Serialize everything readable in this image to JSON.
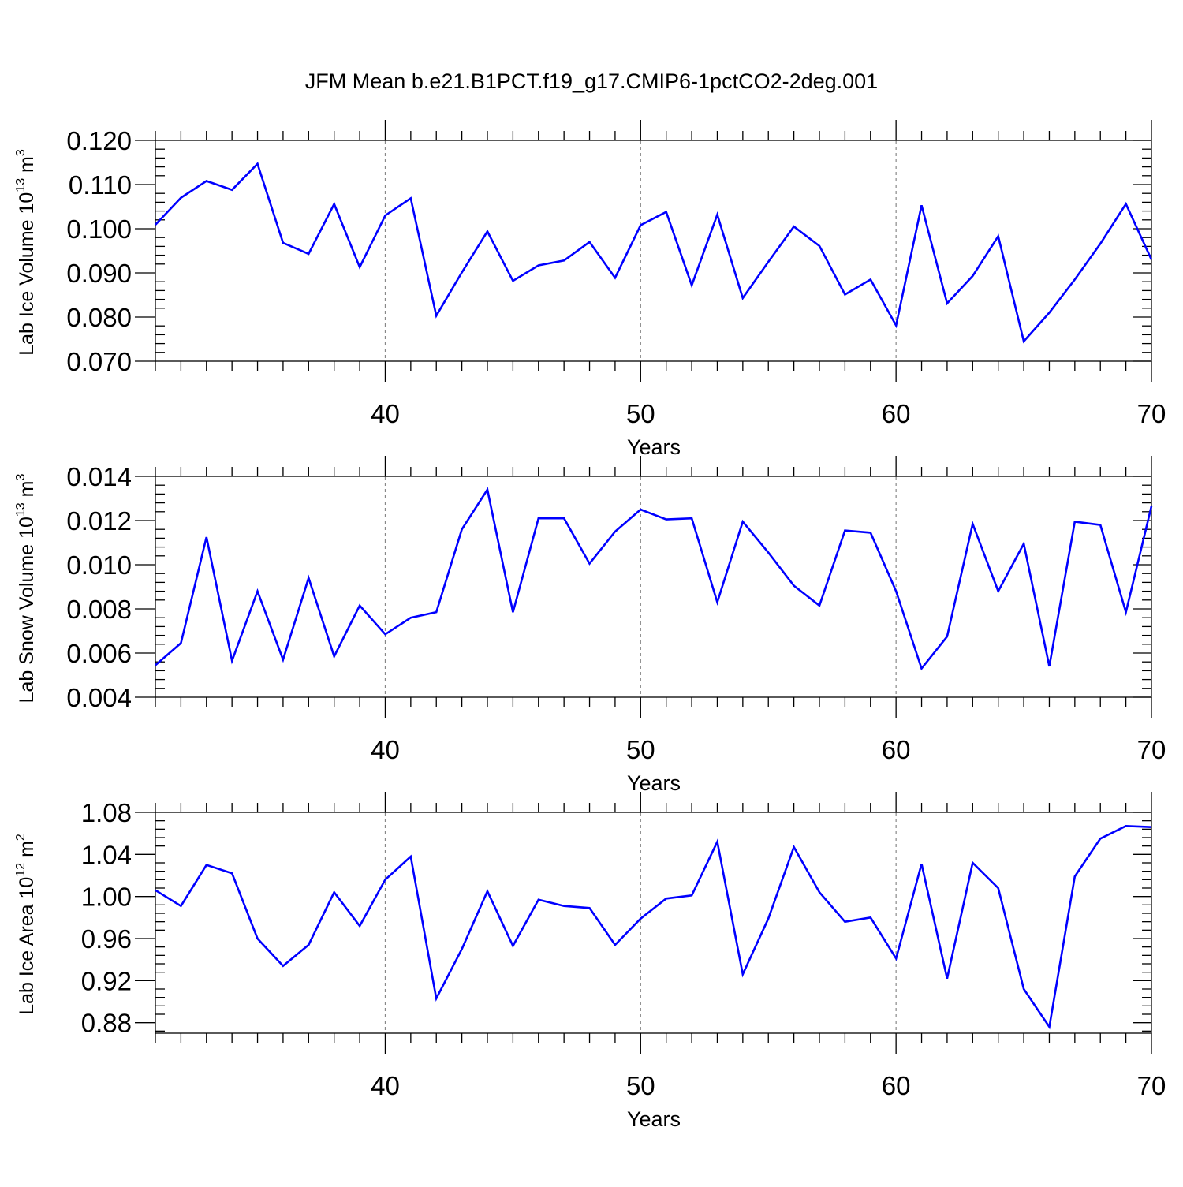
{
  "title": "JFM Mean b.e21.B1PCT.f19_g17.CMIP6-1pctCO2-2deg.001",
  "colors": {
    "line": "#0000ff",
    "axis": "#000000",
    "grid": "#888888"
  },
  "chart_data": [
    {
      "type": "line",
      "xlabel": "Years",
      "ylabel": "Lab Ice Volume 10",
      "ylabel_sup": "13",
      "ylabel_unit": " m",
      "ylabel_unit_sup": "3",
      "xlim": [
        31,
        70
      ],
      "ylim": [
        0.07,
        0.12
      ],
      "xticks": [
        40,
        50,
        60,
        70
      ],
      "yticks": [
        0.07,
        0.08,
        0.09,
        0.1,
        0.11,
        0.12
      ],
      "ytick_labels": [
        "0.070",
        "0.080",
        "0.090",
        "0.100",
        "0.110",
        "0.120"
      ],
      "x_gridlines": [
        40,
        50,
        60
      ],
      "x": [
        31,
        32,
        33,
        34,
        35,
        36,
        37,
        38,
        39,
        40,
        41,
        42,
        43,
        44,
        45,
        46,
        47,
        48,
        49,
        50,
        51,
        52,
        53,
        54,
        55,
        56,
        57,
        58,
        59,
        60,
        61,
        62,
        63,
        64,
        65,
        66,
        67,
        68,
        69,
        70
      ],
      "values": [
        0.1009,
        0.107,
        0.1108,
        0.1088,
        0.1147,
        0.0968,
        0.0943,
        0.1056,
        0.0913,
        0.103,
        0.1069,
        0.0803,
        0.0901,
        0.0994,
        0.0882,
        0.0917,
        0.0928,
        0.097,
        0.0889,
        0.1008,
        0.1038,
        0.0872,
        0.1032,
        0.0843,
        0.0925,
        0.1005,
        0.0961,
        0.0851,
        0.0885,
        0.0781,
        0.1053,
        0.0831,
        0.0893,
        0.0983,
        0.0745,
        0.081,
        0.0885,
        0.0966,
        0.1056,
        0.093
      ]
    },
    {
      "type": "line",
      "xlabel": "Years",
      "ylabel": "Lab Snow Volume 10",
      "ylabel_sup": "13",
      "ylabel_unit": " m",
      "ylabel_unit_sup": "3",
      "xlim": [
        31,
        70
      ],
      "ylim": [
        0.004,
        0.014
      ],
      "xticks": [
        40,
        50,
        60,
        70
      ],
      "yticks": [
        0.004,
        0.006,
        0.008,
        0.01,
        0.012,
        0.014
      ],
      "ytick_labels": [
        "0.004",
        "0.006",
        "0.008",
        "0.010",
        "0.012",
        "0.014"
      ],
      "x_gridlines": [
        40,
        50,
        60
      ],
      "x": [
        31,
        32,
        33,
        34,
        35,
        36,
        37,
        38,
        39,
        40,
        41,
        42,
        43,
        44,
        45,
        46,
        47,
        48,
        49,
        50,
        51,
        52,
        53,
        54,
        55,
        56,
        57,
        58,
        59,
        60,
        61,
        62,
        63,
        64,
        65,
        66,
        67,
        68,
        69,
        70
      ],
      "values": [
        0.00545,
        0.00645,
        0.01125,
        0.00565,
        0.0088,
        0.0057,
        0.0094,
        0.00585,
        0.00815,
        0.00685,
        0.0076,
        0.00785,
        0.0116,
        0.0134,
        0.00785,
        0.0121,
        0.0121,
        0.01005,
        0.0115,
        0.0125,
        0.01205,
        0.0121,
        0.0083,
        0.01195,
        0.01055,
        0.00905,
        0.00815,
        0.01155,
        0.01145,
        0.0088,
        0.0053,
        0.00675,
        0.01185,
        0.0088,
        0.01095,
        0.0054,
        0.01195,
        0.0118,
        0.00785,
        0.01265
      ]
    },
    {
      "type": "line",
      "xlabel": "Years",
      "ylabel": "Lab Ice Area 10",
      "ylabel_sup": "12",
      "ylabel_unit": " m",
      "ylabel_unit_sup": "2",
      "xlim": [
        31,
        70
      ],
      "ylim": [
        0.87,
        1.08
      ],
      "xticks": [
        40,
        50,
        60,
        70
      ],
      "yticks": [
        0.88,
        0.92,
        0.96,
        1.0,
        1.04,
        1.08
      ],
      "ytick_labels": [
        "0.88",
        "0.92",
        "0.96",
        "1.00",
        "1.04",
        "1.08"
      ],
      "x_gridlines": [
        40,
        50,
        60
      ],
      "x": [
        31,
        32,
        33,
        34,
        35,
        36,
        37,
        38,
        39,
        40,
        41,
        42,
        43,
        44,
        45,
        46,
        47,
        48,
        49,
        50,
        51,
        52,
        53,
        54,
        55,
        56,
        57,
        58,
        59,
        60,
        61,
        62,
        63,
        64,
        65,
        66,
        67,
        68,
        69,
        70
      ],
      "values": [
        1.006,
        0.991,
        1.03,
        1.022,
        0.96,
        0.934,
        0.954,
        1.004,
        0.972,
        1.016,
        1.038,
        0.903,
        0.95,
        1.005,
        0.953,
        0.997,
        0.991,
        0.989,
        0.954,
        0.979,
        0.998,
        1.001,
        1.052,
        0.926,
        0.979,
        1.047,
        1.004,
        0.976,
        0.98,
        0.941,
        1.031,
        0.922,
        1.032,
        1.008,
        0.912,
        0.876,
        1.019,
        1.055,
        1.067,
        1.066
      ]
    }
  ]
}
